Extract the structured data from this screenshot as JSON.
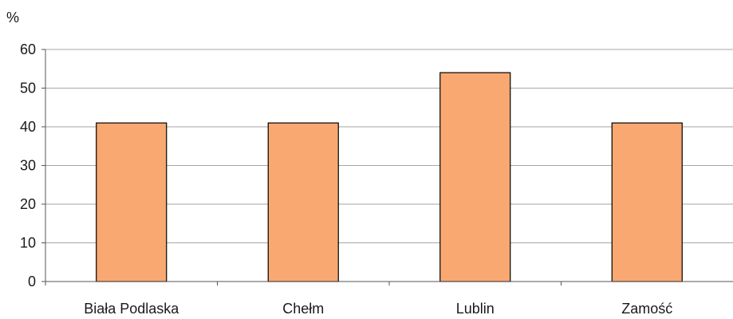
{
  "chart_data": {
    "type": "bar",
    "unit_label": "%",
    "categories": [
      "Biała Podlaska",
      "Chełm",
      "Lublin",
      "Zamość"
    ],
    "values": [
      41,
      41,
      54,
      41
    ],
    "ylim": [
      0,
      60
    ],
    "yticks": [
      0,
      10,
      20,
      30,
      40,
      50,
      60
    ],
    "grid": true,
    "legend": "none",
    "colors": {
      "bar_fill": "#f9a872",
      "bar_stroke": "#000000",
      "grid": "#a6a6a6",
      "axis": "#555555"
    }
  }
}
